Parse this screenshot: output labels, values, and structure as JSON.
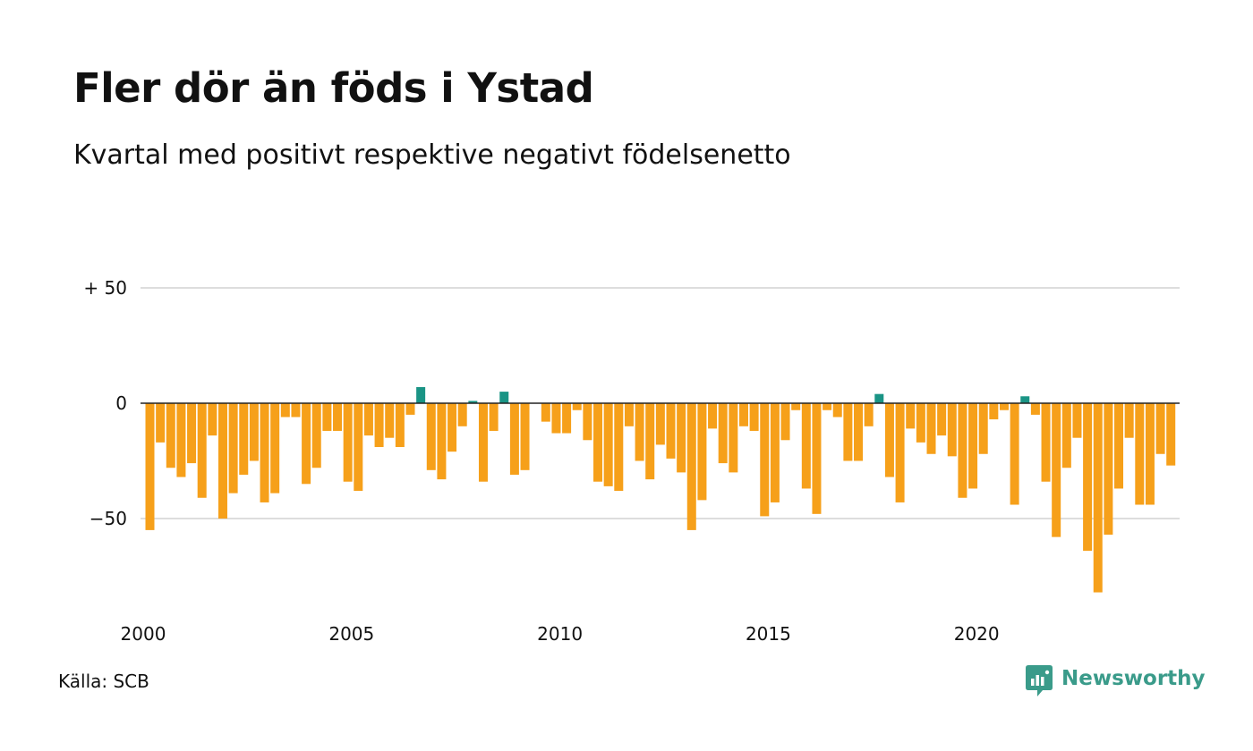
{
  "title": "Fler dör än föds i Ystad",
  "subtitle": "Kvartal med positivt respektive negativt födelsenetto",
  "source": "Källa: SCB",
  "brand": {
    "name": "Newsworthy",
    "icon": "newsworthy-logo-icon"
  },
  "colors": {
    "positive": "#1a9485",
    "negative": "#f6a01a",
    "grid": "#dddddd",
    "zero_line": "#222222",
    "text": "#111111",
    "brand": "#3a9b8a"
  },
  "chart_data": {
    "type": "bar",
    "title": "Fler dör än föds i Ystad",
    "subtitle": "Kvartal med positivt respektive negativt födelsenetto",
    "xlabel": "",
    "ylabel": "",
    "x_start": "2000 Q1",
    "x_ticks": [
      "2000",
      "2005",
      "2010",
      "2015",
      "2020"
    ],
    "y_ticks": [
      {
        "value": 50,
        "label": "+ 50"
      },
      {
        "value": 0,
        "label": "0"
      },
      {
        "value": -50,
        "label": "−50"
      }
    ],
    "ylim": [
      -88,
      50
    ],
    "grid": true,
    "values": [
      -55,
      -17,
      -28,
      -32,
      -26,
      -41,
      -14,
      -50,
      -39,
      -31,
      -25,
      -43,
      -39,
      -6,
      -6,
      -35,
      -28,
      -12,
      -12,
      -34,
      -38,
      -14,
      -19,
      -15,
      -19,
      -5,
      7,
      -29,
      -33,
      -21,
      -10,
      1,
      -34,
      -12,
      5,
      -31,
      -29,
      0,
      -8,
      -13,
      -13,
      -3,
      -16,
      -34,
      -36,
      -38,
      -10,
      -25,
      -33,
      -18,
      -24,
      -30,
      -55,
      -42,
      -11,
      -26,
      -30,
      -10,
      -12,
      -49,
      -43,
      -16,
      -3,
      -37,
      -48,
      -3,
      -6,
      -25,
      -25,
      -10,
      4,
      -32,
      -43,
      -11,
      -17,
      -22,
      -14,
      -23,
      -41,
      -37,
      -22,
      -7,
      -3,
      -44,
      3,
      -5,
      -34,
      -58,
      -28,
      -15,
      -64,
      -82,
      -57,
      -37,
      -15,
      -44,
      -44,
      -22,
      -27
    ]
  }
}
